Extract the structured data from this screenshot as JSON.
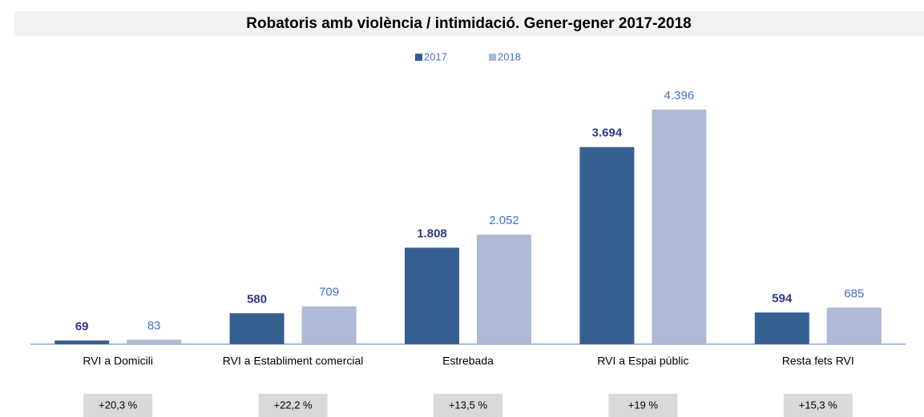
{
  "chart_data": {
    "type": "bar",
    "title": "Robatoris amb violència / intimidació. Gener-gener 2017-2018",
    "categories": [
      "RVI a Domicili",
      "RVI a Establiment comercial",
      "Estrebada",
      "RVI a Espai públic",
      "Resta fets RVI"
    ],
    "series": [
      {
        "name": "2017",
        "color": "#365f91",
        "values": [
          69,
          580,
          1808,
          3694,
          594
        ],
        "value_labels": [
          "69",
          "580",
          "1.808",
          "3.694",
          "594"
        ]
      },
      {
        "name": "2018",
        "color": "#adb9d7",
        "values": [
          83,
          709,
          2052,
          4396,
          685
        ],
        "value_labels": [
          "83",
          "709",
          "2.052",
          "4.396",
          "685"
        ]
      }
    ],
    "annotations": [
      "+20,3 %",
      "+22,2 %",
      "+13,5 %",
      "+19 %",
      "+15,3 %"
    ],
    "ylim": [
      0,
      4500
    ],
    "legend": "top"
  }
}
